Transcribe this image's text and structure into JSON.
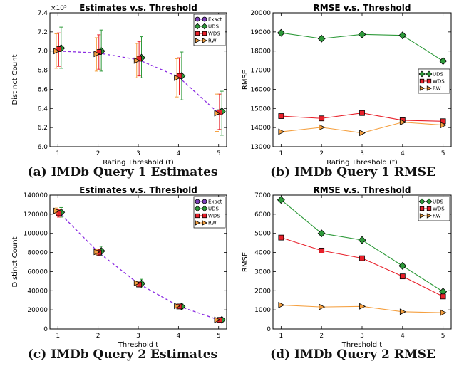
{
  "captions": [
    "(a) IMDb Query 1 Estimates",
    "(b) IMDb Query 1 RMSE",
    "(c) IMDb Query 2 Estimates",
    "(d) IMDb Query 2 RMSE"
  ],
  "colors": {
    "exact": "#7b3fb8",
    "uds": "#2e9a3a",
    "wds": "#e8202a",
    "rw": "#f5a040",
    "exact_line": "#8a2be2"
  },
  "chart_data": [
    {
      "type": "line",
      "title": "Estimates v.s. Threshold",
      "xlabel": "Rating Threshold (t)",
      "ylabel": "Distinct Count",
      "scale_label": "×10⁵",
      "x": [
        1,
        2,
        3,
        4,
        5
      ],
      "xlim": [
        0.8,
        5.2
      ],
      "ylim": [
        6.0,
        7.4
      ],
      "yticks": [
        "6.0",
        "6.2",
        "6.4",
        "6.6",
        "6.8",
        "7.0",
        "7.2",
        "7.4"
      ],
      "legend": "top-right",
      "series": [
        {
          "name": "Exact",
          "values": [
            7.0,
            6.98,
            6.91,
            6.73,
            6.35
          ]
        },
        {
          "name": "UDS",
          "values": [
            7.03,
            7.0,
            6.93,
            6.74,
            6.37
          ],
          "err_low": [
            6.82,
            6.79,
            6.72,
            6.49,
            6.12
          ],
          "err_high": [
            7.25,
            7.22,
            7.15,
            6.99,
            6.58
          ]
        },
        {
          "name": "WDS",
          "values": [
            7.02,
            6.99,
            6.92,
            6.74,
            6.36
          ],
          "err_low": [
            6.84,
            6.81,
            6.74,
            6.54,
            6.18
          ],
          "err_high": [
            7.19,
            7.17,
            7.1,
            6.93,
            6.55
          ]
        },
        {
          "name": "RW",
          "values": [
            7.0,
            6.97,
            6.9,
            6.72,
            6.35
          ],
          "err_low": [
            6.82,
            6.79,
            6.72,
            6.52,
            6.16
          ],
          "err_high": [
            7.18,
            7.14,
            7.08,
            6.92,
            6.55
          ]
        }
      ]
    },
    {
      "type": "line",
      "title": "RMSE v.s. Threshold",
      "xlabel": "Rating Threshold (t)",
      "ylabel": "RMSE",
      "x": [
        1,
        2,
        3,
        4,
        5
      ],
      "xlim": [
        0.8,
        5.2
      ],
      "ylim": [
        13000,
        20000
      ],
      "yticks": [
        "13000",
        "14000",
        "15000",
        "16000",
        "17000",
        "18000",
        "19000",
        "20000"
      ],
      "legend": "right",
      "series": [
        {
          "name": "UDS",
          "values": [
            18950,
            18650,
            18870,
            18820,
            17480
          ]
        },
        {
          "name": "WDS",
          "values": [
            14600,
            14480,
            14760,
            14380,
            14330
          ]
        },
        {
          "name": "RW",
          "values": [
            13780,
            14010,
            13720,
            14280,
            14130
          ]
        }
      ]
    },
    {
      "type": "line",
      "title": "Estimates v.s. Threshold",
      "xlabel": "Threshold t",
      "ylabel": "Distinct Count",
      "x": [
        1,
        2,
        3,
        4,
        5
      ],
      "xlim": [
        0.8,
        5.2
      ],
      "ylim": [
        0,
        140000
      ],
      "yticks": [
        "0",
        "20000",
        "40000",
        "60000",
        "80000",
        "100000",
        "120000",
        "140000"
      ],
      "legend": "top-right",
      "series": [
        {
          "name": "Exact",
          "values": [
            123000,
            80500,
            47500,
            24000,
            9500
          ]
        },
        {
          "name": "UDS",
          "values": [
            122000,
            81500,
            47500,
            23500,
            9500
          ],
          "err_low": [
            117000,
            76500,
            43000,
            21000,
            8000
          ],
          "err_high": [
            127000,
            86500,
            52000,
            26000,
            11000
          ]
        },
        {
          "name": "WDS",
          "values": [
            121000,
            80000,
            46500,
            23500,
            9500
          ],
          "err_low": [
            117000,
            77000,
            44000,
            22000,
            8500
          ],
          "err_high": [
            125000,
            83000,
            49000,
            25000,
            10500
          ]
        },
        {
          "name": "RW",
          "values": [
            123500,
            80500,
            48000,
            24000,
            9500
          ],
          "err_low": [
            120500,
            78000,
            46000,
            23000,
            8800
          ],
          "err_high": [
            126500,
            83000,
            50000,
            25000,
            10200
          ]
        }
      ]
    },
    {
      "type": "line",
      "title": "RMSE v.s. Threshold",
      "xlabel": "Threshold t",
      "ylabel": "RMSE",
      "x": [
        1,
        2,
        3,
        4,
        5
      ],
      "xlim": [
        0.8,
        5.2
      ],
      "ylim": [
        0,
        7000
      ],
      "yticks": [
        "0",
        "1000",
        "2000",
        "3000",
        "4000",
        "5000",
        "6000",
        "7000"
      ],
      "legend": "top-right",
      "series": [
        {
          "name": "UDS",
          "values": [
            6750,
            5000,
            4650,
            3300,
            1950
          ]
        },
        {
          "name": "WDS",
          "values": [
            4780,
            4100,
            3700,
            2750,
            1700
          ]
        },
        {
          "name": "RW",
          "values": [
            1250,
            1150,
            1180,
            900,
            850
          ]
        }
      ]
    }
  ]
}
